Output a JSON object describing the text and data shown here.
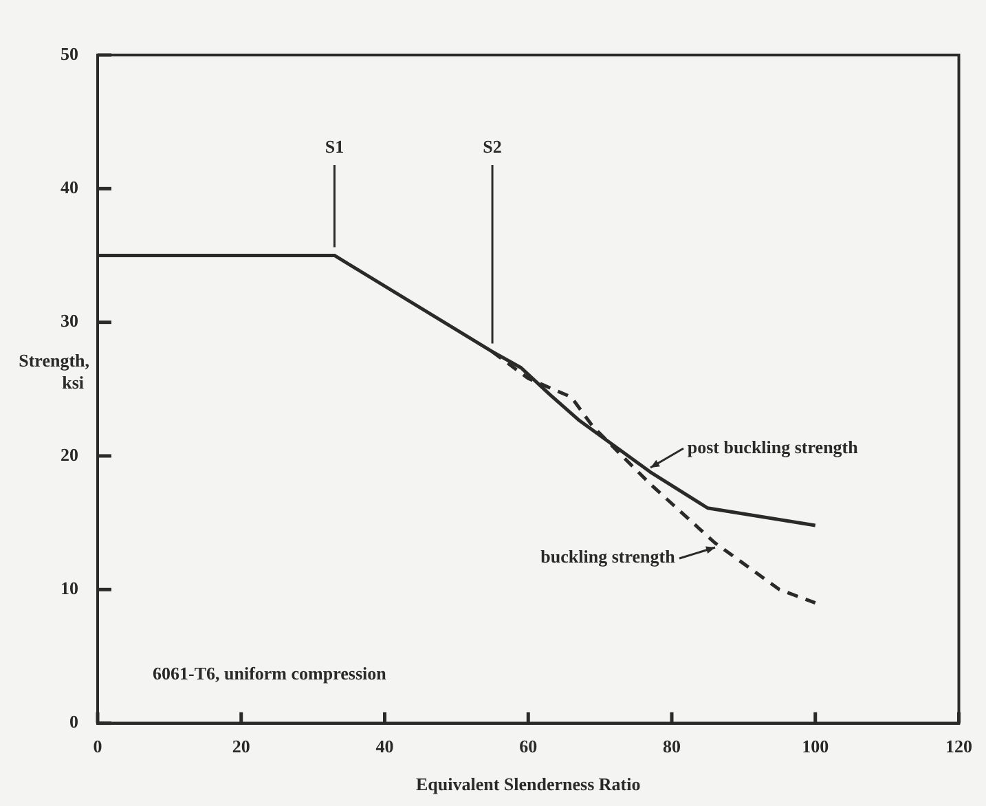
{
  "chart_data": {
    "type": "line",
    "xlabel": "Equivalent Slenderness Ratio",
    "ylabel": "Strength, ksi",
    "xlim": [
      0,
      120
    ],
    "xticks": [
      0,
      20,
      40,
      60,
      80,
      100,
      120
    ],
    "ylim": [
      0,
      50
    ],
    "yticks": [
      0,
      10,
      20,
      30,
      40,
      50
    ],
    "legend": false,
    "marker": "none",
    "series": [
      {
        "color": "#2a2a2a",
        "line_style": "solid",
        "x": [
          0,
          33,
          55,
          59,
          63,
          67,
          77,
          85,
          100
        ],
        "values": [
          35,
          35,
          27.8,
          26.6,
          24.6,
          22.7,
          18.8,
          16.1,
          14.8
        ]
      },
      {
        "color": "#2a2a2a",
        "line_style": "dashed",
        "x": [
          55,
          60,
          66,
          69,
          77,
          86,
          95,
          100
        ],
        "values": [
          27.8,
          25.8,
          24.4,
          22.2,
          17.9,
          13.5,
          10.0,
          9.0
        ]
      }
    ],
    "ref_lines": [
      {
        "axis": "x",
        "value": 33,
        "label": "S1"
      },
      {
        "axis": "x",
        "value": 55,
        "label": "S2"
      }
    ],
    "annotations": [
      {
        "text": "post buckling strength",
        "x": 77,
        "y": 18.8
      },
      {
        "text": "buckling strength",
        "x": 86,
        "y": 13.5
      },
      "6061-T6, uniform compression"
    ]
  }
}
